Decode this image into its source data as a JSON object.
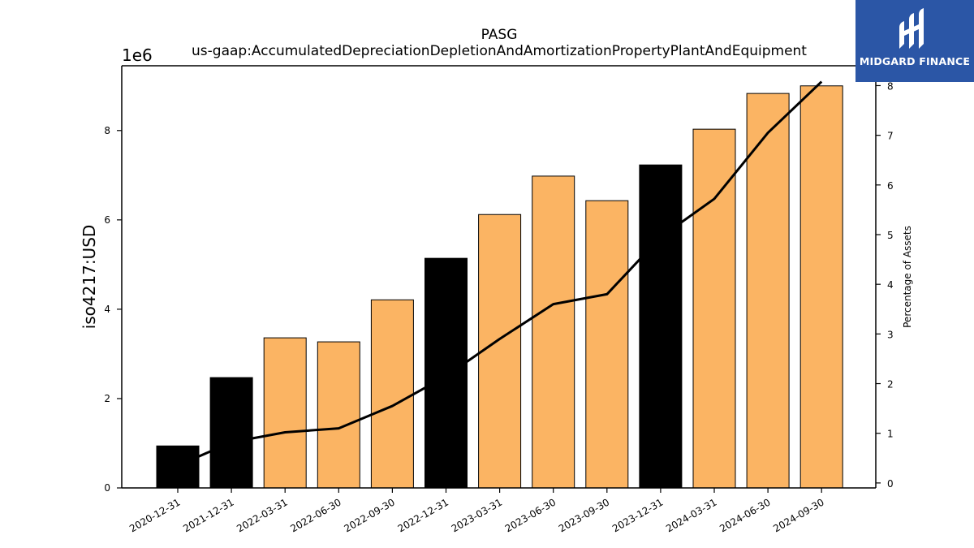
{
  "chart_data": {
    "type": "bar",
    "title": "PASG",
    "subtitle": "us-gaap:AccumulatedDepreciationDepletionAndAmortizationPropertyPlantAndEquipment",
    "ylabel": "iso4217:USD",
    "y_offset_label": "1e6",
    "y2label": "Percentage of Assets",
    "ylim": [
      0,
      9450000
    ],
    "y2lim": [
      -0.1,
      8.4
    ],
    "yticks": [
      0,
      2000000,
      4000000,
      6000000,
      8000000
    ],
    "ytick_labels": [
      "0",
      "2",
      "4",
      "6",
      "8"
    ],
    "y2ticks": [
      0,
      1,
      2,
      3,
      4,
      5,
      6,
      7,
      8
    ],
    "y2tick_labels": [
      "0",
      "1",
      "2",
      "3",
      "4",
      "5",
      "6",
      "7",
      "8"
    ],
    "categories": [
      "2020-12-31",
      "2021-12-31",
      "2022-03-31",
      "2022-06-30",
      "2022-09-30",
      "2022-12-31",
      "2023-03-31",
      "2023-06-30",
      "2023-09-30",
      "2023-12-31",
      "2024-03-31",
      "2024-06-30",
      "2024-09-30"
    ],
    "series": [
      {
        "kind": "bar",
        "values": [
          940000,
          2470000,
          3360000,
          3270000,
          4210000,
          5140000,
          6120000,
          6980000,
          6430000,
          7230000,
          8030000,
          8830000,
          9000000
        ],
        "annual_color": "#000000",
        "quarterly_color": "#fbb463",
        "period": [
          "annual",
          "annual",
          "quarterly",
          "quarterly",
          "quarterly",
          "annual",
          "quarterly",
          "quarterly",
          "quarterly",
          "annual",
          "quarterly",
          "quarterly",
          "quarterly"
        ]
      },
      {
        "kind": "line",
        "axis": "right",
        "values": [
          0.35,
          0.82,
          1.02,
          1.1,
          1.55,
          2.15,
          2.9,
          3.6,
          3.8,
          4.95,
          5.72,
          7.05,
          8.08
        ],
        "color": "#000000"
      }
    ],
    "grid": false,
    "legend": "none"
  },
  "logo": {
    "text": "MIDGARD FINANCE",
    "background": "#2b56a6"
  }
}
